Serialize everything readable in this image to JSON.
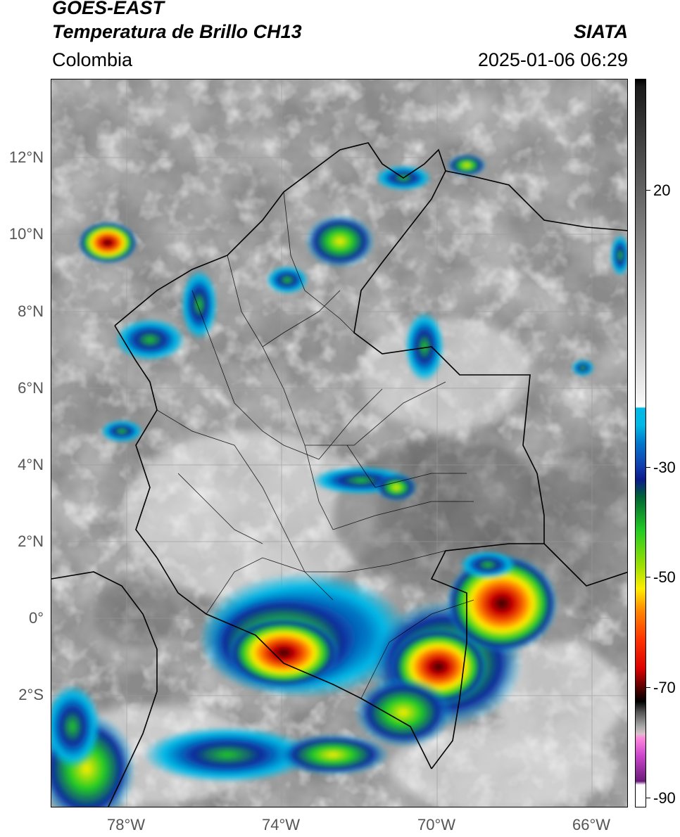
{
  "header": {
    "satellite": "GOES-EAST",
    "product": "Temperatura de Brillo CH13",
    "region": "Colombia",
    "organization": "SIATA",
    "datetime": "2025-01-06 06:29"
  },
  "map": {
    "lat_labels": [
      "12°N",
      "10°N",
      "8°N",
      "6°N",
      "4°N",
      "2°N",
      "0°",
      "2°S"
    ],
    "lon_labels": [
      "78°W",
      "74°W",
      "70°W",
      "66°W"
    ]
  },
  "colorbar": {
    "labels": [
      "20",
      "-30",
      "-50",
      "-70",
      "-90"
    ],
    "colors": {
      "gray_high": "#1a1a1a",
      "gray_low": "#f4f4f4",
      "cyan": "#00b8e6",
      "dark_blue": "#0a1a8c",
      "green": "#22cc22",
      "yellow": "#ffee00",
      "orange": "#ff8800",
      "red": "#dd0000",
      "dark_red": "#440000",
      "black": "#000000",
      "magenta": "#cc44cc",
      "purple": "#6a1a7a"
    }
  }
}
